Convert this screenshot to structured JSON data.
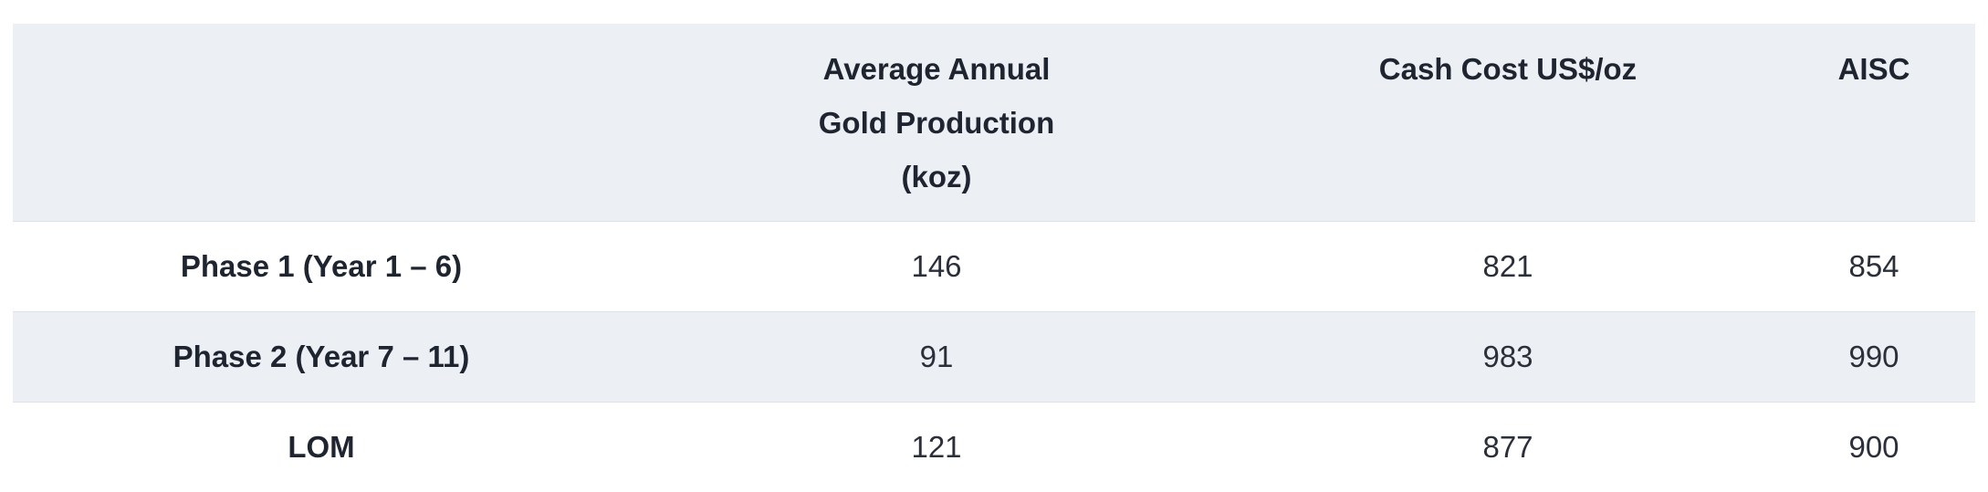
{
  "table": {
    "headers": [
      {
        "lines": [
          ""
        ]
      },
      {
        "lines": [
          "Average Annual",
          "Gold Production",
          "(koz)"
        ]
      },
      {
        "lines": [
          "Cash Cost US$/oz"
        ]
      },
      {
        "lines": [
          "AISC"
        ]
      }
    ],
    "rows": [
      {
        "label": "Phase 1 (Year 1 – 6)",
        "production": "146",
        "cash_cost": "821",
        "aisc": "854"
      },
      {
        "label": "Phase 2 (Year 7 – 11)",
        "production": "91",
        "cash_cost": "983",
        "aisc": "990"
      },
      {
        "label": "LOM",
        "production": "121",
        "cash_cost": "877",
        "aisc": "900"
      }
    ]
  }
}
